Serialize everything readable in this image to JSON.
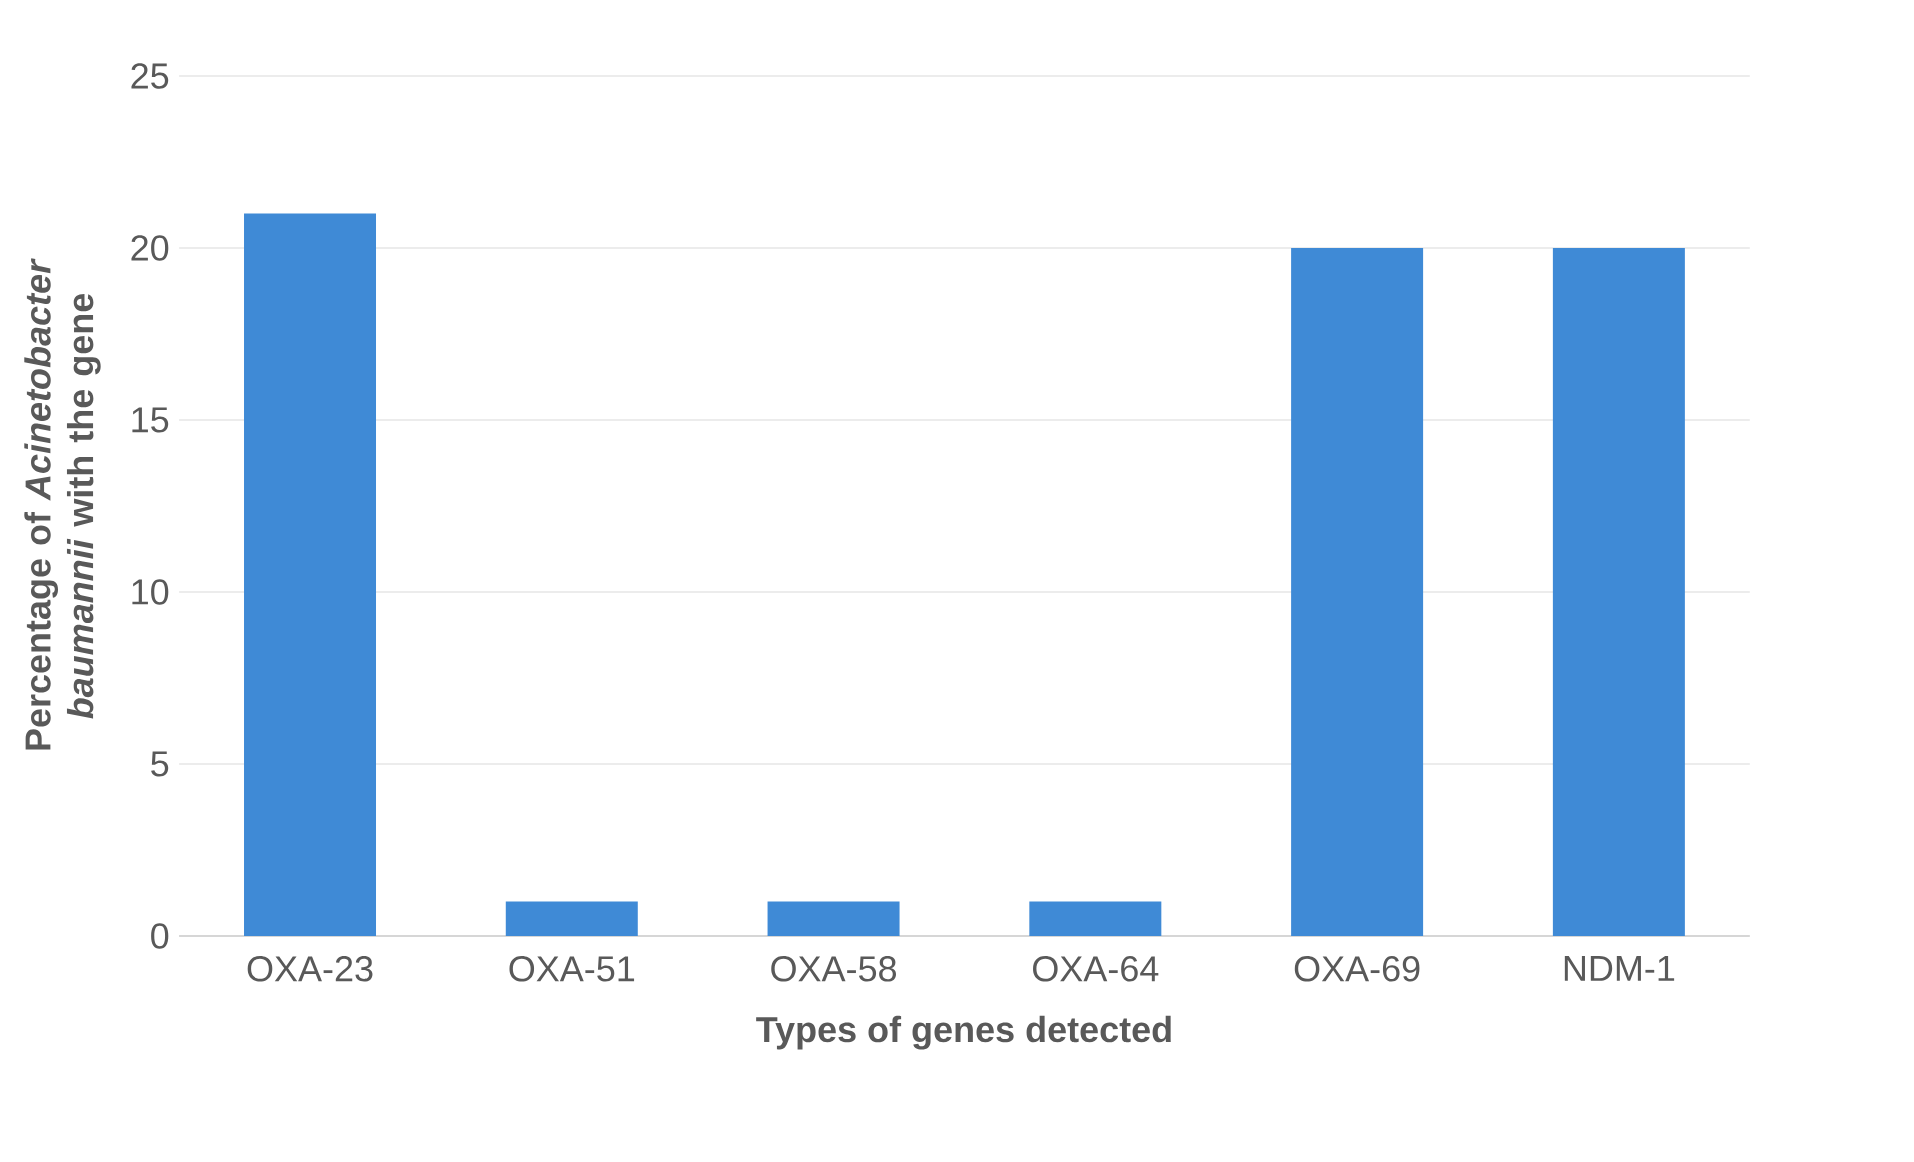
{
  "chart_data": {
    "type": "bar",
    "xlabel": "Types of genes detected",
    "ylabel": "Percentage of *Acinetobacter baumannii* with the gene",
    "categories": [
      "OXA-23",
      "OXA-51",
      "OXA-58",
      "OXA-64",
      "OXA-69",
      "NDM-1"
    ],
    "values": [
      21,
      1,
      1,
      1,
      20,
      20
    ],
    "color": "#3f8ad6",
    "ylim": [
      0,
      25
    ],
    "yticks": [
      0,
      5,
      10,
      15,
      20,
      25
    ],
    "grid": "y"
  }
}
